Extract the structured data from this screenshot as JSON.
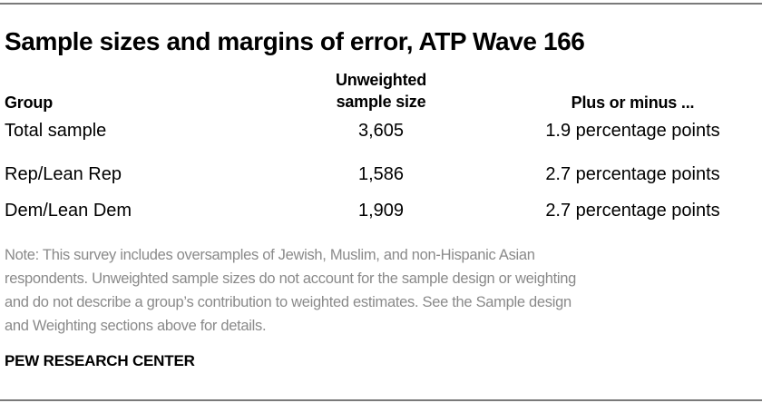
{
  "title": "Sample sizes and margins of error, ATP Wave 166",
  "table": {
    "headers": {
      "group": "Group",
      "sample_size_line1": "Unweighted",
      "sample_size_line2": "sample size",
      "margin": "Plus or minus ..."
    },
    "rows": [
      {
        "group": "Total sample",
        "sample_size": "3,605",
        "margin": "1.9 percentage points"
      },
      {
        "group": "Rep/Lean Rep",
        "sample_size": "1,586",
        "margin": "2.7 percentage points"
      },
      {
        "group": "Dem/Lean Dem",
        "sample_size": "1,909",
        "margin": "2.7 percentage points"
      }
    ]
  },
  "note_lines": [
    "Note: This survey includes oversamples of Jewish, Muslim, and non-Hispanic Asian",
    "respondents. Unweighted sample sizes do not account for the sample design or weighting",
    "and do not describe a group’s contribution to weighted estimates. See the Sample design",
    "and Weighting sections above for details."
  ],
  "source": "PEW RESEARCH CENTER"
}
